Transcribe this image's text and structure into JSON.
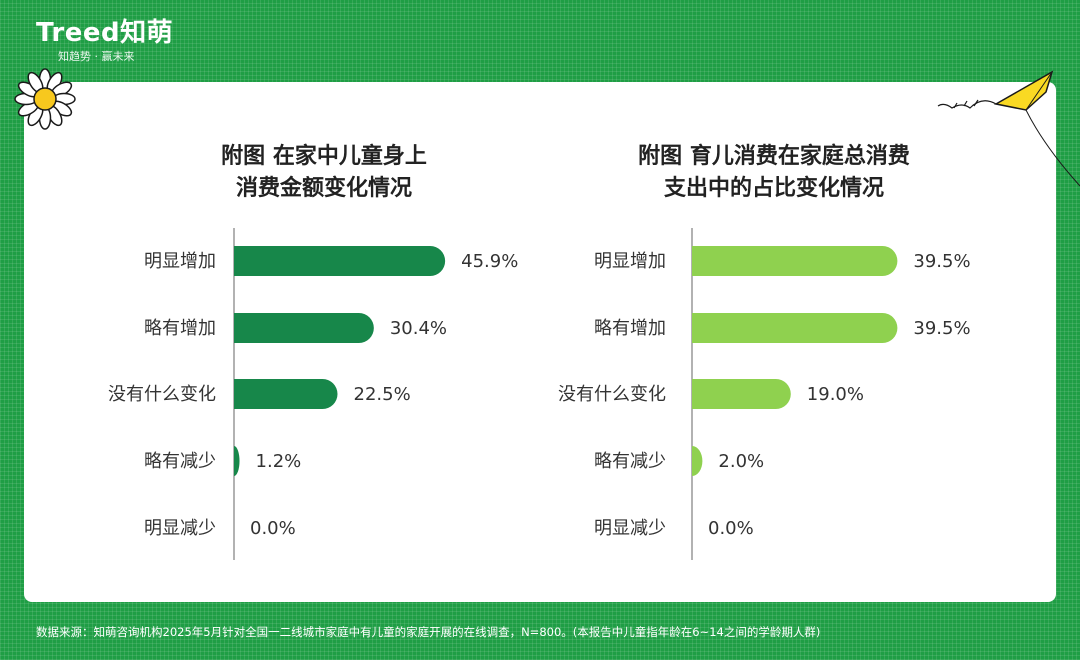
{
  "brand": {
    "name": "Treed知萌",
    "slogan": "知趋势 · 赢未来"
  },
  "colors": {
    "background": "#1f9e45",
    "left_bar": "#17874a",
    "right_bar": "#8fd14f",
    "text": "#333333"
  },
  "chart_data": [
    {
      "type": "bar",
      "orientation": "horizontal",
      "title": [
        "附图 在家中儿童身上",
        "消费金额变化情况"
      ],
      "categories": [
        "明显增加",
        "略有增加",
        "没有什么变化",
        "略有减少",
        "明显减少"
      ],
      "values": [
        45.9,
        30.4,
        22.5,
        1.2,
        0.0
      ],
      "value_labels": [
        "45.9%",
        "30.4%",
        "22.5%",
        "1.2%",
        "0.0%"
      ],
      "unit": "%",
      "xlim": [
        0,
        50
      ],
      "color": "#17874a"
    },
    {
      "type": "bar",
      "orientation": "horizontal",
      "title": [
        "附图 育儿消费在家庭总消费",
        "支出中的占比变化情况"
      ],
      "categories": [
        "明显增加",
        "略有增加",
        "没有什么变化",
        "略有减少",
        "明显减少"
      ],
      "values": [
        39.5,
        39.5,
        19.0,
        2.0,
        0.0
      ],
      "value_labels": [
        "39.5%",
        "39.5%",
        "19.0%",
        "2.0%",
        "0.0%"
      ],
      "unit": "%",
      "xlim": [
        0,
        50
      ],
      "color": "#8fd14f"
    }
  ],
  "footer": "数据来源：知萌咨询机构2025年5月针对全国一二线城市家庭中有儿童的家庭开展的在线调查，N=800。(本报告中儿童指年龄在6~14之间的学龄期人群)"
}
